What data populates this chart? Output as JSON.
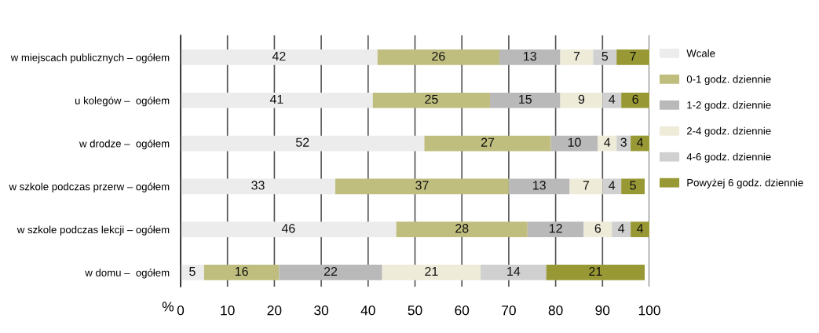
{
  "chart_data": {
    "type": "bar",
    "orientation": "horizontal",
    "stacked": true,
    "categories": [
      "w miejscach publicznych – ogółem",
      "u kolegów –  ogółem",
      "w drodze –  ogółem",
      "w szkole podczas przerw – ogółem",
      "w szkole podczas lekcji – ogółem",
      "w domu –  ogółem"
    ],
    "series": [
      {
        "name": "Wcale",
        "color": "#ececec",
        "values": [
          42,
          41,
          52,
          33,
          46,
          5
        ]
      },
      {
        "name": "0-1 godz. dziennie",
        "color": "#bfbe7f",
        "values": [
          26,
          25,
          27,
          37,
          28,
          16
        ]
      },
      {
        "name": "1-2 godz. dziennie",
        "color": "#b9b9b9",
        "values": [
          13,
          15,
          10,
          13,
          12,
          22
        ]
      },
      {
        "name": "2-4 godz. dziennie",
        "color": "#eeebd9",
        "values": [
          7,
          9,
          4,
          7,
          6,
          21
        ]
      },
      {
        "name": "4-6 godz. dziennie",
        "color": "#d0d0d0",
        "values": [
          5,
          4,
          3,
          4,
          4,
          14
        ]
      },
      {
        "name": "Powyżej 6 godz. dziennie",
        "color": "#989834",
        "values": [
          7,
          6,
          4,
          5,
          4,
          21
        ]
      }
    ],
    "xlabel": "%",
    "xlim": [
      0,
      100
    ],
    "xticks": [
      0,
      10,
      20,
      30,
      40,
      50,
      60,
      70,
      80,
      90,
      100
    ],
    "grid": "x",
    "legend": "right",
    "data_labels": true
  }
}
